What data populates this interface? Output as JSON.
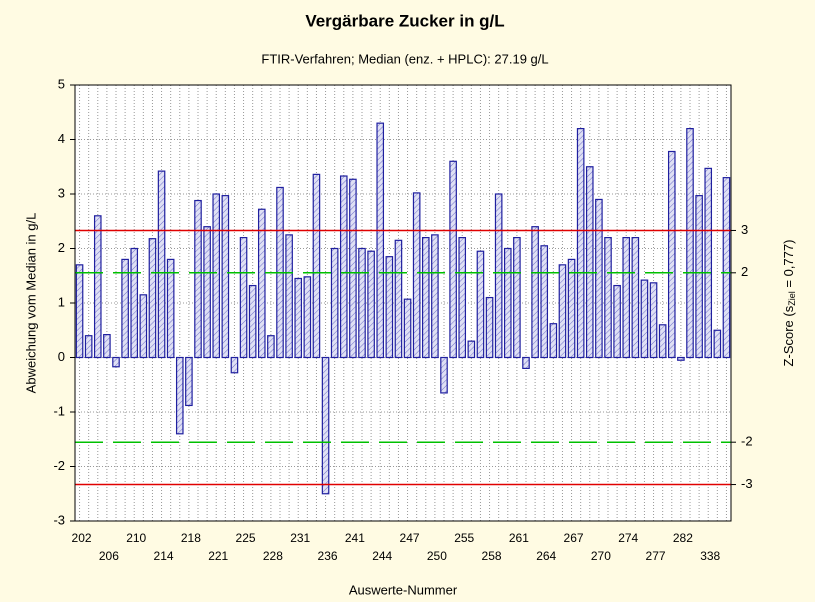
{
  "chart_data": {
    "type": "bar",
    "title": "Vergärbare Zucker in g/L",
    "subtitle": "FTIR-Verfahren; Median (enz. + HPLC): 27.19 g/L",
    "xlabel": "Auswerte-Nummer",
    "ylabel": "Abweichung vom Median in g/L",
    "y2label": {
      "prefix": "Z-Score (s",
      "sub": "Ziel",
      "suffix": " = 0,777)"
    },
    "categories": [
      "202",
      null,
      null,
      "206",
      null,
      null,
      "210",
      null,
      null,
      "214",
      null,
      null,
      "218",
      null,
      null,
      "221",
      null,
      null,
      "225",
      null,
      null,
      "228",
      null,
      null,
      "231",
      null,
      null,
      "236",
      null,
      null,
      "241",
      null,
      null,
      "244",
      null,
      null,
      "247",
      null,
      null,
      "250",
      null,
      null,
      "255",
      null,
      null,
      "258",
      null,
      null,
      "261",
      null,
      null,
      "264",
      null,
      null,
      "267",
      null,
      null,
      "270",
      null,
      null,
      "274",
      null,
      null,
      "277",
      null,
      null,
      "282",
      null,
      null,
      "338",
      null,
      null
    ],
    "values": [
      1.7,
      0.4,
      2.6,
      0.42,
      -0.17,
      1.8,
      2.0,
      1.15,
      2.18,
      3.42,
      1.8,
      -1.4,
      -0.88,
      2.88,
      2.4,
      3.0,
      2.97,
      -0.28,
      2.2,
      1.32,
      2.72,
      0.4,
      3.12,
      2.25,
      1.45,
      1.48,
      3.36,
      -2.5,
      2.0,
      3.33,
      3.27,
      2.0,
      1.95,
      4.3,
      1.85,
      2.15,
      1.07,
      3.02,
      2.2,
      2.25,
      -0.65,
      3.6,
      2.2,
      0.3,
      1.95,
      1.1,
      3.0,
      2.0,
      2.2,
      -0.2,
      2.4,
      2.05,
      0.62,
      1.7,
      1.8,
      4.2,
      3.5,
      2.9,
      2.2,
      1.32,
      2.2,
      2.2,
      1.42,
      1.37,
      0.6,
      3.78,
      -0.05,
      4.2,
      2.97,
      3.47,
      0.5,
      3.3
    ],
    "color": "#1f1f9f",
    "ylim": [
      -3,
      5
    ],
    "yticks": [
      -3,
      -2,
      -1,
      0,
      1,
      2,
      3,
      4,
      5
    ],
    "y2lim": [
      -3.861,
      6.435
    ],
    "y2ticks": [
      -3,
      -2,
      2,
      3
    ],
    "reference_line_colors": [
      "#e00000",
      "#00c000",
      "#00c000",
      "#e00000"
    ],
    "reference_line_dashed": [
      false,
      true,
      true,
      false
    ],
    "grid": true
  }
}
